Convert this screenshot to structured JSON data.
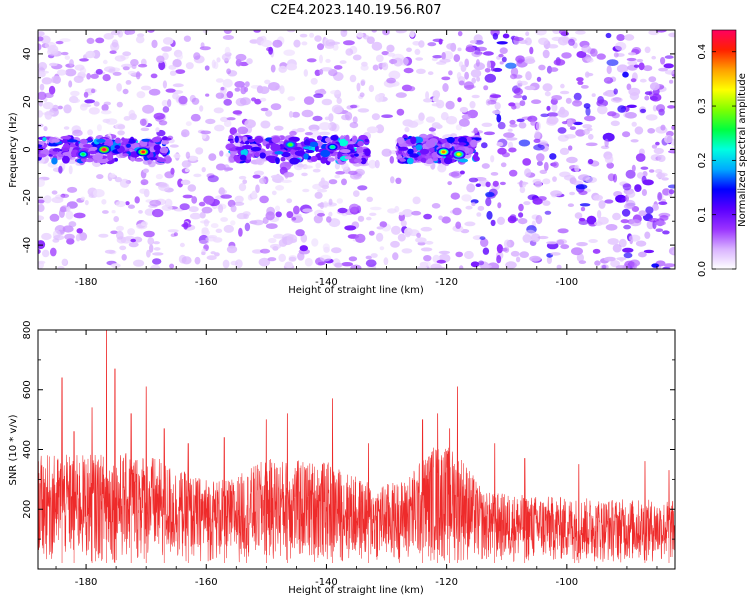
{
  "title": "C2E4.2023.140.19.56.R07",
  "chart_data": [
    {
      "type": "heatmap",
      "xlabel": "Height of straight line (km)",
      "ylabel": "Frequency (Hz)",
      "xlim": [
        -188,
        -82
      ],
      "ylim": [
        -50,
        50
      ],
      "xticks": [
        -180,
        -160,
        -140,
        -120,
        -100
      ],
      "yticks": [
        -40,
        -20,
        0,
        20,
        40
      ],
      "colorbar": {
        "label": "Normalized spectral amplitude",
        "range": [
          0.0,
          0.44
        ],
        "ticks": [
          0.0,
          0.1,
          0.2,
          0.3,
          0.4
        ],
        "colors": [
          "#ffffff",
          "#d9b3ff",
          "#9a33ff",
          "#5a00ff",
          "#0000ff",
          "#00aaff",
          "#00ffe0",
          "#00ff40",
          "#80ff00",
          "#ffff00",
          "#ffa000",
          "#ff2000",
          "#ff0060"
        ]
      },
      "signal_band": {
        "frequency_hz": 0,
        "x_ranges": [
          [
            -188,
            -166
          ],
          [
            -156,
            -133
          ],
          [
            -128,
            -115
          ]
        ],
        "hotspots": [
          {
            "x": -177,
            "y": 0,
            "value": 0.44
          },
          {
            "x": -170.5,
            "y": -1,
            "value": 0.42
          },
          {
            "x": -146,
            "y": 2,
            "value": 0.28
          },
          {
            "x": -120.5,
            "y": -1,
            "value": 0.38
          },
          {
            "x": -118,
            "y": -2,
            "value": 0.33
          },
          {
            "x": -180.5,
            "y": -2,
            "value": 0.26
          },
          {
            "x": -139,
            "y": 1,
            "value": 0.24
          }
        ]
      }
    },
    {
      "type": "line",
      "xlabel": "Height of straight line (km)",
      "ylabel": "SNR (10 * v/v)",
      "xlim": [
        -188,
        -82
      ],
      "ylim": [
        0,
        800
      ],
      "xticks": [
        -180,
        -160,
        -140,
        -120,
        -100
      ],
      "yticks": [
        200,
        400,
        600,
        800
      ],
      "color": "#ee2a2a",
      "peaks": [
        {
          "x": -184,
          "y": 640
        },
        {
          "x": -182,
          "y": 460
        },
        {
          "x": -179,
          "y": 540
        },
        {
          "x": -176.6,
          "y": 800
        },
        {
          "x": -175.2,
          "y": 670
        },
        {
          "x": -172.5,
          "y": 520
        },
        {
          "x": -170,
          "y": 610
        },
        {
          "x": -167,
          "y": 470
        },
        {
          "x": -163,
          "y": 420
        },
        {
          "x": -157,
          "y": 440
        },
        {
          "x": -150,
          "y": 500
        },
        {
          "x": -146.5,
          "y": 520
        },
        {
          "x": -139,
          "y": 570
        },
        {
          "x": -133,
          "y": 420
        },
        {
          "x": -124,
          "y": 500
        },
        {
          "x": -121.5,
          "y": 520
        },
        {
          "x": -119.5,
          "y": 470
        },
        {
          "x": -118.2,
          "y": 610
        },
        {
          "x": -112,
          "y": 420
        },
        {
          "x": -107,
          "y": 370
        },
        {
          "x": -98,
          "y": 350
        },
        {
          "x": -87,
          "y": 360
        },
        {
          "x": -83,
          "y": 330
        }
      ],
      "envelope": [
        {
          "x": -188,
          "max": 380,
          "min": 20
        },
        {
          "x": -170,
          "max": 390,
          "min": 20
        },
        {
          "x": -162,
          "max": 310,
          "min": 20
        },
        {
          "x": -156,
          "max": 300,
          "min": 20
        },
        {
          "x": -150,
          "max": 370,
          "min": 20
        },
        {
          "x": -140,
          "max": 360,
          "min": 20
        },
        {
          "x": -132,
          "max": 280,
          "min": 20
        },
        {
          "x": -127,
          "max": 300,
          "min": 20
        },
        {
          "x": -122,
          "max": 420,
          "min": 20
        },
        {
          "x": -118,
          "max": 400,
          "min": 20
        },
        {
          "x": -114,
          "max": 260,
          "min": 20
        },
        {
          "x": -108,
          "max": 250,
          "min": 20
        },
        {
          "x": -100,
          "max": 240,
          "min": 20
        },
        {
          "x": -82,
          "max": 230,
          "min": 20
        }
      ]
    }
  ]
}
